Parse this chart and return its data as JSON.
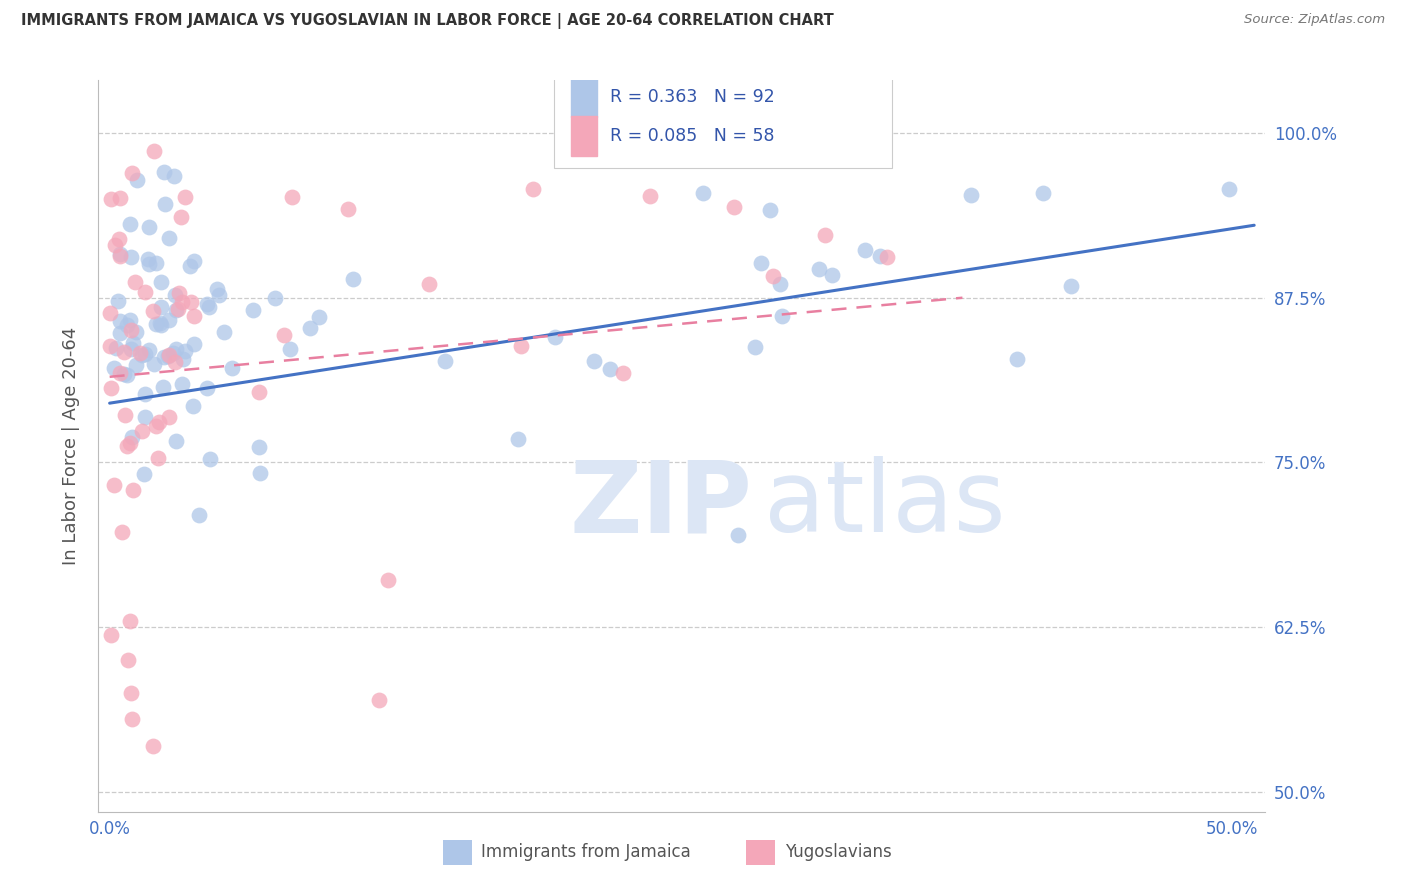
{
  "title": "IMMIGRANTS FROM JAMAICA VS YUGOSLAVIAN IN LABOR FORCE | AGE 20-64 CORRELATION CHART",
  "source": "Source: ZipAtlas.com",
  "ylabel": "In Labor Force | Age 20-64",
  "xlim": [
    -0.005,
    0.515
  ],
  "ylim": [
    0.485,
    1.04
  ],
  "xticks": [
    0.0,
    0.5
  ],
  "xtick_labels": [
    "0.0%",
    "50.0%"
  ],
  "yticks": [
    0.5,
    0.625,
    0.75,
    0.875,
    1.0
  ],
  "ytick_labels": [
    "50.0%",
    "62.5%",
    "75.0%",
    "87.5%",
    "100.0%"
  ],
  "jamaica_R": 0.363,
  "jamaica_N": 92,
  "yugoslavian_R": 0.085,
  "yugoslavian_N": 58,
  "jamaica_color": "#aec6e8",
  "yugoslavian_color": "#f4a7b9",
  "jamaica_line_color": "#4472c4",
  "yugoslavian_line_color": "#e87fa0",
  "background_color": "#ffffff",
  "grid_color": "#cccccc",
  "title_color": "#333333",
  "axis_label_color": "#555555",
  "tick_color": "#4472c4",
  "legend_text_color": "#333333",
  "watermark_color": "#dce6f5",
  "source_color": "#777777"
}
